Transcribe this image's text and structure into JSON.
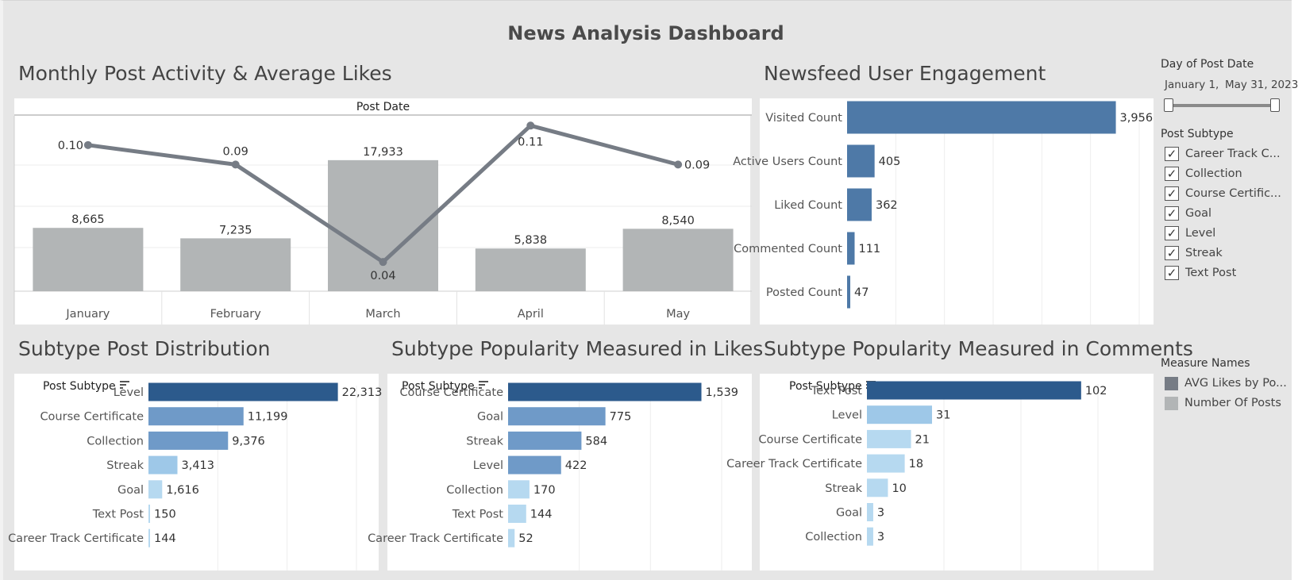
{
  "dashboard": {
    "title": "News Analysis Dashboard"
  },
  "colors": {
    "bar_gray": "#b2b5b6",
    "line_gray": "#767c85",
    "engagement_blue": "#4e79a7",
    "dark_blue": "#2c5a8c",
    "mid_blue": "#6f9ac8",
    "light_blue": "#9ec8e8",
    "lighter_blue": "#b6d9f0"
  },
  "sections": {
    "monthly": "Monthly Post Activity & Average Likes",
    "engagement": "Newsfeed User Engagement",
    "distribution": "Subtype Post Distribution",
    "likes": "Subtype Popularity Measured in Likes",
    "comments": "Subtype Popularity Measured in Comments"
  },
  "sidebar": {
    "date_filter": {
      "title": "Day of Post Date",
      "start": "January 1,",
      "end": "May 31, 2023"
    },
    "subtype_filter": {
      "title": "Post Subtype",
      "items": [
        "Career Track C...",
        "Collection",
        "Course Certific...",
        "Goal",
        "Level",
        "Streak",
        "Text Post"
      ]
    },
    "measure_legend": {
      "title": "Measure Names",
      "items": [
        {
          "label": "AVG Likes by Po...",
          "color": "#767c85"
        },
        {
          "label": "Number Of Posts",
          "color": "#b2b5b6"
        }
      ]
    }
  },
  "chart_data": [
    {
      "type": "bar",
      "id": "monthly",
      "header": "Post Date",
      "categories": [
        "January",
        "February",
        "March",
        "April",
        "May"
      ],
      "series": [
        {
          "name": "Number Of Posts",
          "values": [
            8665,
            7235,
            17933,
            5838,
            8540
          ],
          "labels": [
            "8,665",
            "7,235",
            "17,933",
            "5,838",
            "8,540"
          ]
        },
        {
          "name": "AVG Likes by Po...",
          "values": [
            0.1,
            0.09,
            0.04,
            0.11,
            0.09
          ],
          "labels": [
            "0.10",
            "0.09",
            "0.04",
            "0.11",
            "0.09"
          ]
        }
      ],
      "ylim_bars": [
        0,
        24000
      ],
      "ylim_line": [
        0.025,
        0.115
      ]
    },
    {
      "type": "bar",
      "id": "engagement",
      "orientation": "horizontal",
      "categories": [
        "Visited Count",
        "Active Users Count",
        "Liked Count",
        "Commented Count",
        "Posted Count"
      ],
      "values": [
        3956,
        405,
        362,
        111,
        47
      ],
      "labels": [
        "3,956",
        "405",
        "362",
        "111",
        "47"
      ],
      "xlim": [
        0,
        4300
      ]
    },
    {
      "type": "bar",
      "id": "distribution",
      "orientation": "horizontal",
      "header": "Post Subtype",
      "categories": [
        "Level",
        "Course Certificate",
        "Collection",
        "Streak",
        "Goal",
        "Text Post",
        "Career Track Certificate"
      ],
      "values": [
        22313,
        11199,
        9376,
        3413,
        1616,
        150,
        144
      ],
      "labels": [
        "22,313",
        "11,199",
        "9,376",
        "3,413",
        "1,616",
        "150",
        "144"
      ],
      "xlim": [
        0,
        24500
      ]
    },
    {
      "type": "bar",
      "id": "likes",
      "orientation": "horizontal",
      "header": "Post Subtype",
      "categories": [
        "Course Certificate",
        "Goal",
        "Streak",
        "Level",
        "Collection",
        "Text Post",
        "Career Track Certificate"
      ],
      "values": [
        1539,
        775,
        584,
        422,
        170,
        144,
        52
      ],
      "labels": [
        "1,539",
        "775",
        "584",
        "422",
        "170",
        "144",
        "52"
      ],
      "xlim": [
        0,
        1700
      ]
    },
    {
      "type": "bar",
      "id": "comments",
      "orientation": "horizontal",
      "header": "Post Subtype",
      "categories": [
        "Text Post",
        "Level",
        "Course Certificate",
        "Career Track Certificate",
        "Streak",
        "Goal",
        "Collection"
      ],
      "values": [
        102,
        31,
        21,
        18,
        10,
        3,
        3
      ],
      "labels": [
        "102",
        "31",
        "21",
        "18",
        "10",
        "3",
        "3"
      ],
      "xlim": [
        0,
        110
      ]
    }
  ]
}
